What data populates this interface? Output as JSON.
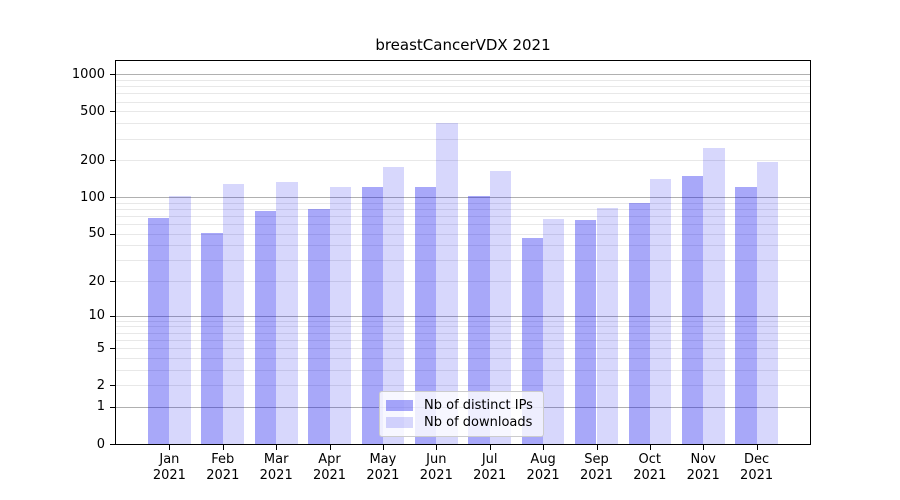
{
  "chart_data": {
    "type": "bar",
    "title": "breastCancerVDX 2021",
    "year_label": "2021",
    "categories": [
      "Jan",
      "Feb",
      "Mar",
      "Apr",
      "May",
      "Jun",
      "Jul",
      "Aug",
      "Sep",
      "Oct",
      "Nov",
      "Dec"
    ],
    "series": [
      {
        "name": "Nb of distinct IPs",
        "color": "rgba(0,0,238,0.34)",
        "values": [
          68,
          51,
          77,
          80,
          120,
          120,
          103,
          46,
          65,
          90,
          150,
          121
        ]
      },
      {
        "name": "Nb of downloads",
        "color": "rgba(0,0,238,0.155)",
        "values": [
          102,
          129,
          132,
          121,
          175,
          400,
          164,
          66,
          81,
          140,
          253,
          194
        ]
      }
    ],
    "xlabel": "",
    "ylabel": "",
    "yscale": "log1p",
    "ylim": [
      0,
      1284
    ],
    "yticks": [
      0,
      1,
      2,
      5,
      10,
      20,
      50,
      100,
      200,
      500,
      1000
    ],
    "grid": {
      "major_lines": [
        1,
        10,
        100,
        1000
      ],
      "minor_mantissas": [
        2,
        3,
        4,
        5,
        6,
        7,
        8,
        9
      ],
      "major_color": "#b0b0b0",
      "minor_color": "#e8e8e8",
      "grid_on": true
    },
    "legend": {
      "position": "lower center"
    },
    "bar_width_fraction": 0.4,
    "axis_color": "#000000",
    "background_color": "#ffffff"
  }
}
